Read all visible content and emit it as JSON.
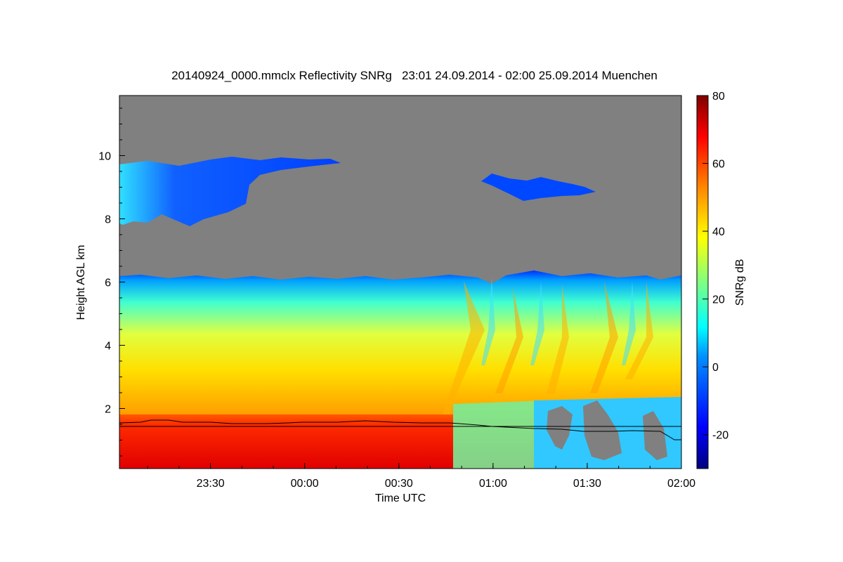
{
  "chart_data": {
    "type": "heatmap",
    "title": "20140924_0000.mmclx Reflectivity SNRg   23:01 24.09.2014 - 02:00 25.09.2014 Muenchen",
    "xlabel": "Time UTC",
    "ylabel": "Height AGL km",
    "colorbar_label": "SNRg dB",
    "x_range": [
      "23:01",
      "02:00"
    ],
    "x_ticks": [
      "23:30",
      "00:00",
      "00:30",
      "01:00",
      "01:30",
      "02:00"
    ],
    "y_range": [
      0.1,
      11.9
    ],
    "y_ticks": [
      2,
      4,
      6,
      8,
      10
    ],
    "colorbar_range": [
      -30,
      80
    ],
    "colorbar_ticks": [
      -20,
      0,
      20,
      40,
      60,
      80
    ],
    "no_signal_color": "#808080",
    "colormap": [
      "#00007f",
      "#0000ff",
      "#0080ff",
      "#00ffff",
      "#80ff80",
      "#ffff00",
      "#ff8000",
      "#ff0000",
      "#7f0000"
    ],
    "features": {
      "boundary_layer_top_km": 6.2,
      "upper_cloud_km": [
        8.0,
        9.8
      ],
      "line_height_km": 1.5
    }
  }
}
